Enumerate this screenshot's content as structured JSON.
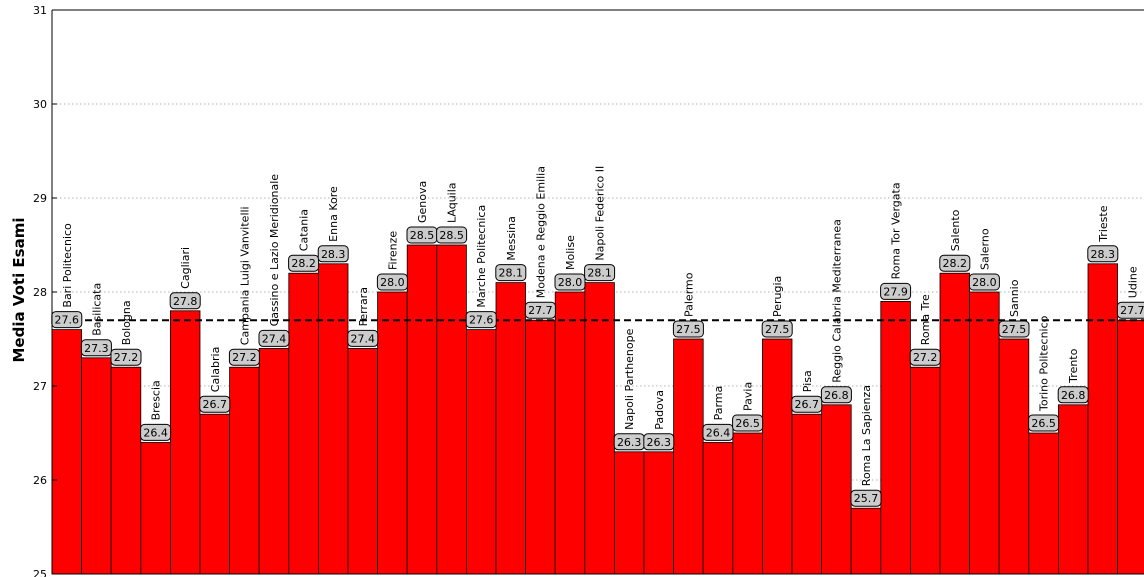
{
  "chart_data": {
    "type": "bar",
    "title": "",
    "xlabel": "",
    "ylabel": "Media Voti Esami",
    "ylim": [
      25,
      31
    ],
    "yticks": [
      "25",
      "26",
      "27",
      "28",
      "29",
      "30",
      "31"
    ],
    "grid": true,
    "reference_line": 27.7,
    "bar_color": "#ff0000",
    "label_box_color": "#cccccc",
    "categories": [
      "Bari Politecnico",
      "Basilicata",
      "Bologna",
      "Brescia",
      "Cagliari",
      "Calabria",
      "Campania Luigi Vanvitelli",
      "Cassino e Lazio Meridionale",
      "Catania",
      "Enna Kore",
      "Ferrara",
      "Firenze",
      "Genova",
      "LAquila",
      "Marche Politecnica",
      "Messina",
      "Modena e Reggio Emilia",
      "Molise",
      "Napoli Federico II",
      "Napoli Parthenope",
      "Padova",
      "Palermo",
      "Parma",
      "Pavia",
      "Perugia",
      "Pisa",
      "Reggio Calabria Mediterranea",
      "Roma La Sapienza",
      "Roma Tor Vergata",
      "Roma Tre",
      "Salento",
      "Salerno",
      "Sannio",
      "Torino Politecnico",
      "Trento",
      "Trieste",
      "Udine"
    ],
    "values": [
      27.6,
      27.3,
      27.2,
      26.4,
      27.8,
      26.7,
      27.2,
      27.4,
      28.2,
      28.3,
      27.4,
      28.0,
      28.5,
      28.5,
      27.6,
      28.1,
      27.7,
      28.0,
      28.1,
      26.3,
      26.3,
      27.5,
      26.4,
      26.5,
      27.5,
      26.7,
      26.8,
      25.7,
      27.9,
      27.2,
      28.2,
      28.0,
      27.5,
      26.5,
      26.8,
      28.3,
      27.7
    ],
    "value_labels": [
      "27.6",
      "27.3",
      "27.2",
      "26.4",
      "27.8",
      "26.7",
      "27.2",
      "27.4",
      "28.2",
      "28.3",
      "27.4",
      "28.0",
      "28.5",
      "28.5",
      "27.6",
      "28.1",
      "27.7",
      "28.0",
      "28.1",
      "26.3",
      "26.3",
      "27.5",
      "26.4",
      "26.5",
      "27.5",
      "26.7",
      "26.8",
      "25.7",
      "27.9",
      "27.2",
      "28.2",
      "28.0",
      "27.5",
      "26.5",
      "26.8",
      "28.3",
      "27.7"
    ]
  }
}
